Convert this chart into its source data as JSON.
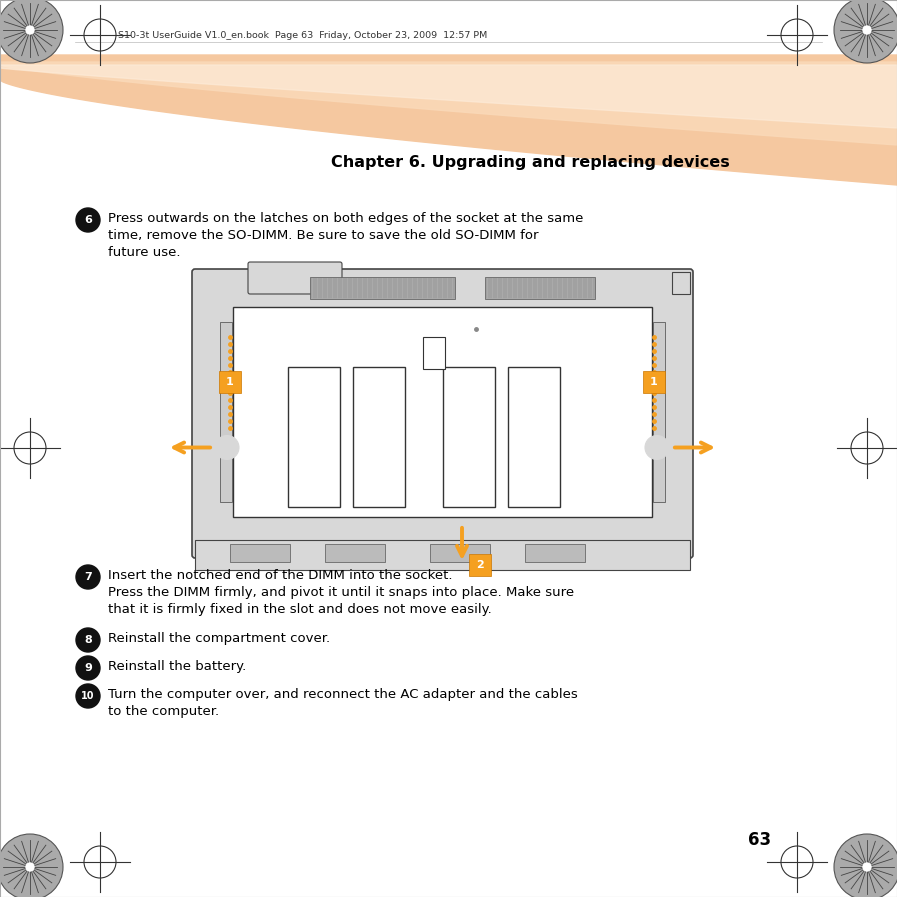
{
  "bg_color": "#ffffff",
  "peach1": "#f5c8a0",
  "peach2": "#fad9b8",
  "peach3": "#fdebd8",
  "header_text": "Chapter 6. Upgrading and replacing devices",
  "header_meta": "S10-3t UserGuide V1.0_en.book  Page 63  Friday, October 23, 2009  12:57 PM",
  "page_number": "63",
  "step6_text1": "Press outwards on the latches on both edges of the socket at the same",
  "step6_text2": "time, remove the SO-DIMM. Be sure to save the old SO-DIMM for",
  "step6_text3": "future use.",
  "step7_text1": "Insert the notched end of the DIMM into the socket.",
  "step7_text2": "Press the DIMM firmly, and pivot it until it snaps into place. Make sure",
  "step7_text3": "that it is firmly fixed in the slot and does not move easily.",
  "step8_text": "Reinstall the compartment cover.",
  "step9_text": "Reinstall the battery.",
  "step10_text1": "Turn the computer over, and reconnect the AC adapter and the cables",
  "step10_text2": "to the computer.",
  "orange": "#f5a020",
  "dark": "#111111",
  "gray1": "#c0c0c0",
  "gray2": "#d8d8d8",
  "gray3": "#e8e8e8",
  "white": "#ffffff",
  "edge": "#444444"
}
